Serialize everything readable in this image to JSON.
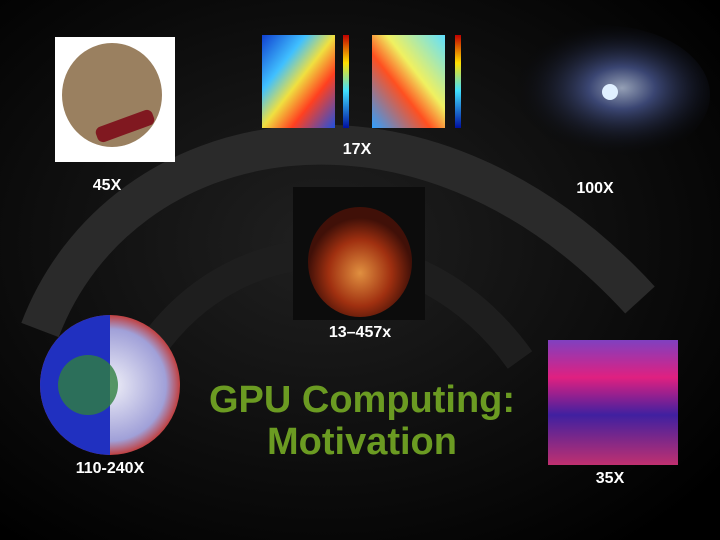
{
  "labels": {
    "fluid": "17X",
    "head": "45X",
    "galaxy": "100X",
    "heart": "13–457x",
    "virus": "110-240X",
    "matrix": "35X"
  },
  "title": [
    "GPU Computing:",
    "Motivation"
  ]
}
